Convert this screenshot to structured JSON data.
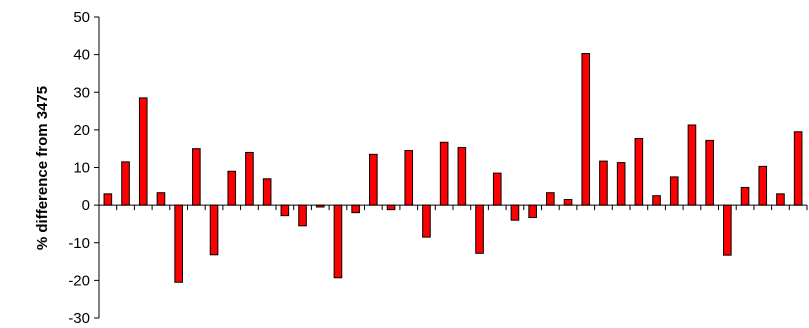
{
  "chart_data": {
    "type": "bar",
    "title": "",
    "xlabel": "",
    "ylabel": "% difference from 3475",
    "ylim": [
      -30,
      50
    ],
    "yticks": [
      50,
      40,
      30,
      20,
      10,
      0,
      -10,
      -20,
      -30
    ],
    "grid": false,
    "legend": "none",
    "colors": {
      "bar_fill": "#ff0000",
      "bar_stroke": "#000000",
      "axis": "#000000"
    },
    "series": [
      {
        "values": [
          3,
          11.5,
          28.5,
          3.3,
          -20.5,
          15,
          -13.2,
          9,
          14,
          7,
          -2.8,
          -5.5,
          -0.5,
          -19.3,
          -2,
          13.5,
          -1.2,
          14.5,
          -8.5,
          16.7,
          15.3,
          -12.8,
          8.5,
          -4,
          -3.3,
          3.3,
          1.5,
          40.3,
          11.7,
          11.3,
          17.7,
          2.5,
          7.5,
          21.3,
          17.2,
          -13.3,
          4.7,
          10.3,
          3,
          19.5
        ]
      }
    ]
  }
}
